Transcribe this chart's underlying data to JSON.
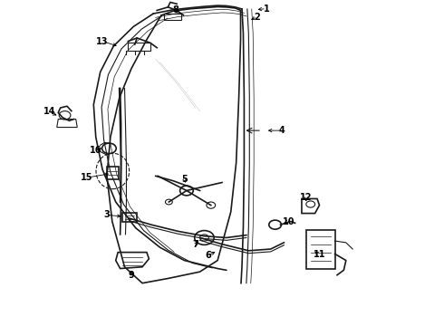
{
  "background_color": "#ffffff",
  "line_color": "#1a1a1a",
  "fig_width": 4.9,
  "fig_height": 3.6,
  "dpi": 100,
  "glass_outer": {
    "x": [
      0.5,
      0.53,
      0.56,
      0.57,
      0.57,
      0.565,
      0.555,
      0.54,
      0.42,
      0.31,
      0.27,
      0.26,
      0.265,
      0.295,
      0.34,
      0.5
    ],
    "y": [
      0.96,
      0.95,
      0.92,
      0.88,
      0.8,
      0.7,
      0.6,
      0.5,
      0.15,
      0.13,
      0.2,
      0.35,
      0.5,
      0.65,
      0.78,
      0.96
    ]
  },
  "label_font": 7.0
}
